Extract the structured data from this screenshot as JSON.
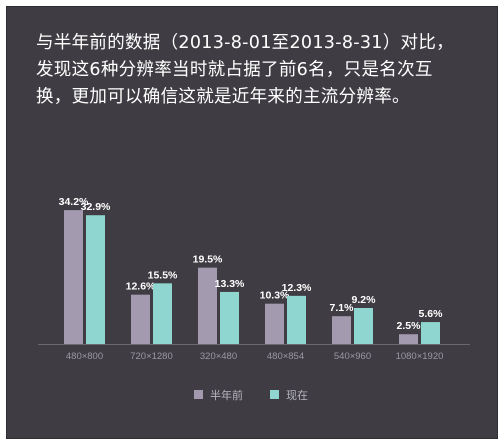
{
  "description": "与半年前的数据（2013-8-01至2013-8-31）对比，发现这6种分辨率当时就占据了前6名，只是名次互换，更加可以确信这就是近年来的主流分辨率。",
  "colors": {
    "background": "#3f3d43",
    "series_previous": "#a49ab0",
    "series_current": "#8ed6cf",
    "axis": "#6b6970",
    "text": "#ffffff"
  },
  "chart_data": {
    "type": "bar",
    "categories": [
      "480×800",
      "720×1280",
      "320×480",
      "480×854",
      "540×960",
      "1080×1920"
    ],
    "series": [
      {
        "name": "半年前",
        "values": [
          34.2,
          12.6,
          19.5,
          10.3,
          7.1,
          2.5
        ],
        "labels": [
          "34.2%",
          "12.6%",
          "19.5%",
          "10.3%",
          "7.1%",
          "2.5%"
        ]
      },
      {
        "name": "现在",
        "values": [
          32.9,
          15.5,
          13.3,
          12.3,
          9.2,
          5.6
        ],
        "labels": [
          "32.9%",
          "15.5%",
          "13.3%",
          "12.3%",
          "9.2%",
          "5.6%"
        ]
      }
    ],
    "unit": "%",
    "ylim": [
      0,
      35
    ],
    "grid": false,
    "legend_position": "bottom-center"
  }
}
